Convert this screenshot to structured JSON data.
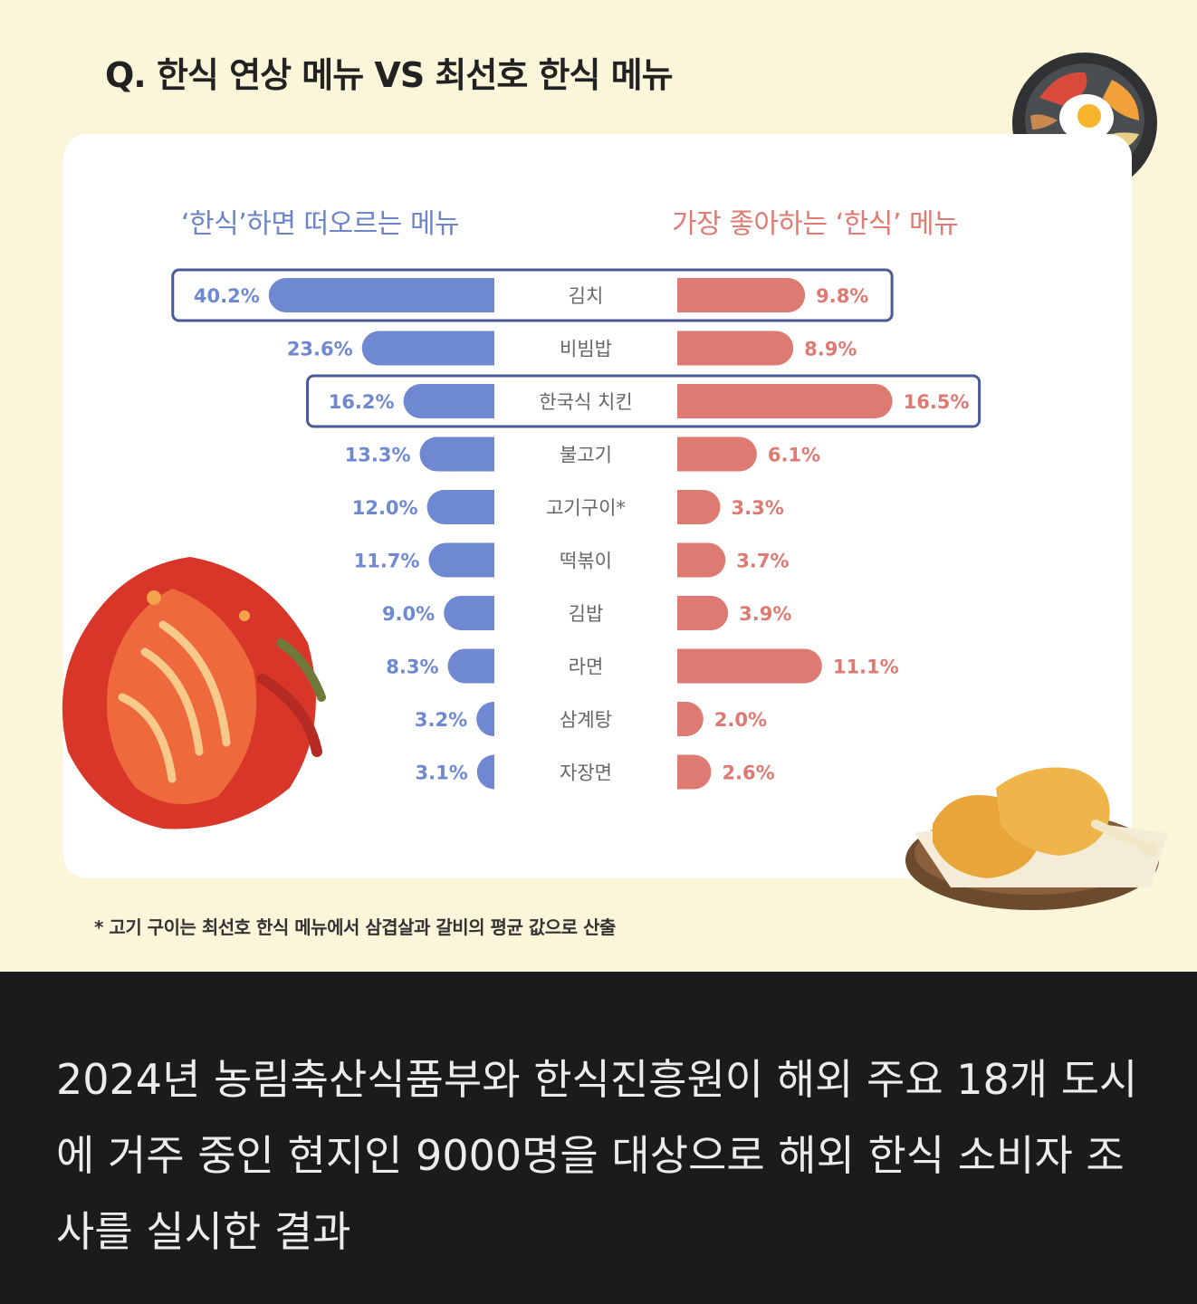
{
  "title": "Q. 한식 연상 메뉴 VS 최선호 한식 메뉴",
  "left_header": "‘한식’하면 떠오르는 메뉴",
  "right_header": "가장 좋아하는 ‘한식’ 메뉴",
  "footnote": "* 고기 구이는 최선호 한식 메뉴에서 삼겹살과 갈비의 평균 값으로 산출",
  "caption": "2024년 농림축산식품부와 한식진흥원이 해외 주요 18개 도시에 거주 중인 현지인 9000명을 대상으로 해외 한식 소비자 조사를 실시한 결과",
  "colors": {
    "left_bar": "#6f88d2",
    "right_bar": "#dd7a72",
    "highlight_box": "#4a5a96",
    "background": "#fbf5d9",
    "caption_bg": "#1b1b1d"
  },
  "chart_data": {
    "type": "bar",
    "categories": [
      "김치",
      "비빔밥",
      "한국식 치킨",
      "불고기",
      "고기구이*",
      "떡볶이",
      "김밥",
      "라면",
      "삼계탕",
      "자장면"
    ],
    "series": [
      {
        "name": "‘한식’하면 떠오르는 메뉴",
        "values": [
          40.2,
          23.6,
          16.2,
          13.3,
          12.0,
          11.7,
          9.0,
          8.3,
          3.2,
          3.1
        ],
        "labels": [
          "40.2%",
          "23.6%",
          "16.2%",
          "13.3%",
          "12.0%",
          "11.7%",
          "9.0%",
          "8.3%",
          "3.2%",
          "3.1%"
        ]
      },
      {
        "name": "가장 좋아하는 ‘한식’ 메뉴",
        "values": [
          9.8,
          8.9,
          16.5,
          6.1,
          3.3,
          3.7,
          3.9,
          11.1,
          2.0,
          2.6
        ],
        "labels": [
          "9.8%",
          "8.9%",
          "16.5%",
          "6.1%",
          "3.3%",
          "3.7%",
          "3.9%",
          "11.1%",
          "2.0%",
          "2.6%"
        ]
      }
    ],
    "highlighted_categories": [
      "김치",
      "한국식 치킨"
    ],
    "unit": "%"
  }
}
